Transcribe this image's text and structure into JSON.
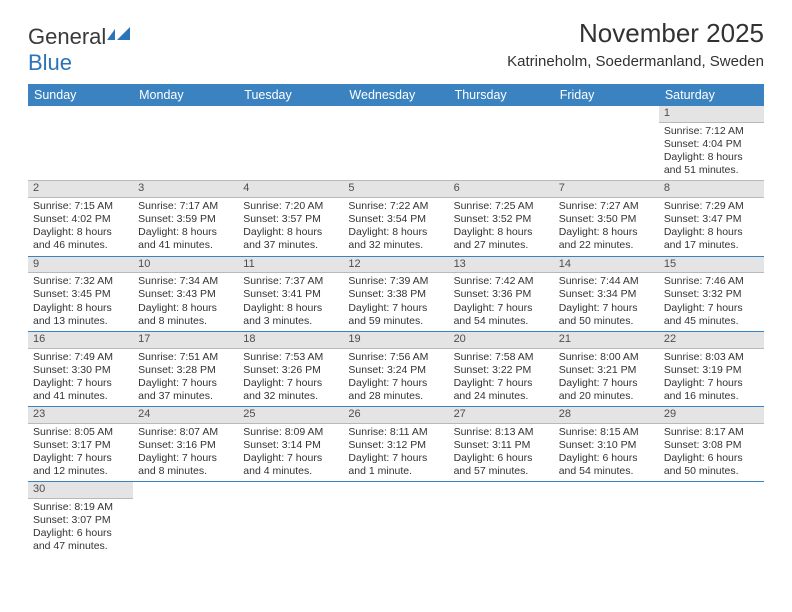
{
  "logo": {
    "word1": "General",
    "word2": "Blue"
  },
  "header": {
    "title": "November 2025",
    "location": "Katrineholm, Soedermanland, Sweden"
  },
  "colors": {
    "header_bg": "#3b83c0",
    "header_fg": "#ffffff",
    "daynum_bg": "#e4e4e4",
    "row_divider": "#3b83c0"
  },
  "weekdays": [
    "Sunday",
    "Monday",
    "Tuesday",
    "Wednesday",
    "Thursday",
    "Friday",
    "Saturday"
  ],
  "weeks": [
    [
      null,
      null,
      null,
      null,
      null,
      null,
      {
        "n": "1",
        "sunrise": "Sunrise: 7:12 AM",
        "sunset": "Sunset: 4:04 PM",
        "day1": "Daylight: 8 hours",
        "day2": "and 51 minutes."
      }
    ],
    [
      {
        "n": "2",
        "sunrise": "Sunrise: 7:15 AM",
        "sunset": "Sunset: 4:02 PM",
        "day1": "Daylight: 8 hours",
        "day2": "and 46 minutes."
      },
      {
        "n": "3",
        "sunrise": "Sunrise: 7:17 AM",
        "sunset": "Sunset: 3:59 PM",
        "day1": "Daylight: 8 hours",
        "day2": "and 41 minutes."
      },
      {
        "n": "4",
        "sunrise": "Sunrise: 7:20 AM",
        "sunset": "Sunset: 3:57 PM",
        "day1": "Daylight: 8 hours",
        "day2": "and 37 minutes."
      },
      {
        "n": "5",
        "sunrise": "Sunrise: 7:22 AM",
        "sunset": "Sunset: 3:54 PM",
        "day1": "Daylight: 8 hours",
        "day2": "and 32 minutes."
      },
      {
        "n": "6",
        "sunrise": "Sunrise: 7:25 AM",
        "sunset": "Sunset: 3:52 PM",
        "day1": "Daylight: 8 hours",
        "day2": "and 27 minutes."
      },
      {
        "n": "7",
        "sunrise": "Sunrise: 7:27 AM",
        "sunset": "Sunset: 3:50 PM",
        "day1": "Daylight: 8 hours",
        "day2": "and 22 minutes."
      },
      {
        "n": "8",
        "sunrise": "Sunrise: 7:29 AM",
        "sunset": "Sunset: 3:47 PM",
        "day1": "Daylight: 8 hours",
        "day2": "and 17 minutes."
      }
    ],
    [
      {
        "n": "9",
        "sunrise": "Sunrise: 7:32 AM",
        "sunset": "Sunset: 3:45 PM",
        "day1": "Daylight: 8 hours",
        "day2": "and 13 minutes."
      },
      {
        "n": "10",
        "sunrise": "Sunrise: 7:34 AM",
        "sunset": "Sunset: 3:43 PM",
        "day1": "Daylight: 8 hours",
        "day2": "and 8 minutes."
      },
      {
        "n": "11",
        "sunrise": "Sunrise: 7:37 AM",
        "sunset": "Sunset: 3:41 PM",
        "day1": "Daylight: 8 hours",
        "day2": "and 3 minutes."
      },
      {
        "n": "12",
        "sunrise": "Sunrise: 7:39 AM",
        "sunset": "Sunset: 3:38 PM",
        "day1": "Daylight: 7 hours",
        "day2": "and 59 minutes."
      },
      {
        "n": "13",
        "sunrise": "Sunrise: 7:42 AM",
        "sunset": "Sunset: 3:36 PM",
        "day1": "Daylight: 7 hours",
        "day2": "and 54 minutes."
      },
      {
        "n": "14",
        "sunrise": "Sunrise: 7:44 AM",
        "sunset": "Sunset: 3:34 PM",
        "day1": "Daylight: 7 hours",
        "day2": "and 50 minutes."
      },
      {
        "n": "15",
        "sunrise": "Sunrise: 7:46 AM",
        "sunset": "Sunset: 3:32 PM",
        "day1": "Daylight: 7 hours",
        "day2": "and 45 minutes."
      }
    ],
    [
      {
        "n": "16",
        "sunrise": "Sunrise: 7:49 AM",
        "sunset": "Sunset: 3:30 PM",
        "day1": "Daylight: 7 hours",
        "day2": "and 41 minutes."
      },
      {
        "n": "17",
        "sunrise": "Sunrise: 7:51 AM",
        "sunset": "Sunset: 3:28 PM",
        "day1": "Daylight: 7 hours",
        "day2": "and 37 minutes."
      },
      {
        "n": "18",
        "sunrise": "Sunrise: 7:53 AM",
        "sunset": "Sunset: 3:26 PM",
        "day1": "Daylight: 7 hours",
        "day2": "and 32 minutes."
      },
      {
        "n": "19",
        "sunrise": "Sunrise: 7:56 AM",
        "sunset": "Sunset: 3:24 PM",
        "day1": "Daylight: 7 hours",
        "day2": "and 28 minutes."
      },
      {
        "n": "20",
        "sunrise": "Sunrise: 7:58 AM",
        "sunset": "Sunset: 3:22 PM",
        "day1": "Daylight: 7 hours",
        "day2": "and 24 minutes."
      },
      {
        "n": "21",
        "sunrise": "Sunrise: 8:00 AM",
        "sunset": "Sunset: 3:21 PM",
        "day1": "Daylight: 7 hours",
        "day2": "and 20 minutes."
      },
      {
        "n": "22",
        "sunrise": "Sunrise: 8:03 AM",
        "sunset": "Sunset: 3:19 PM",
        "day1": "Daylight: 7 hours",
        "day2": "and 16 minutes."
      }
    ],
    [
      {
        "n": "23",
        "sunrise": "Sunrise: 8:05 AM",
        "sunset": "Sunset: 3:17 PM",
        "day1": "Daylight: 7 hours",
        "day2": "and 12 minutes."
      },
      {
        "n": "24",
        "sunrise": "Sunrise: 8:07 AM",
        "sunset": "Sunset: 3:16 PM",
        "day1": "Daylight: 7 hours",
        "day2": "and 8 minutes."
      },
      {
        "n": "25",
        "sunrise": "Sunrise: 8:09 AM",
        "sunset": "Sunset: 3:14 PM",
        "day1": "Daylight: 7 hours",
        "day2": "and 4 minutes."
      },
      {
        "n": "26",
        "sunrise": "Sunrise: 8:11 AM",
        "sunset": "Sunset: 3:12 PM",
        "day1": "Daylight: 7 hours",
        "day2": "and 1 minute."
      },
      {
        "n": "27",
        "sunrise": "Sunrise: 8:13 AM",
        "sunset": "Sunset: 3:11 PM",
        "day1": "Daylight: 6 hours",
        "day2": "and 57 minutes."
      },
      {
        "n": "28",
        "sunrise": "Sunrise: 8:15 AM",
        "sunset": "Sunset: 3:10 PM",
        "day1": "Daylight: 6 hours",
        "day2": "and 54 minutes."
      },
      {
        "n": "29",
        "sunrise": "Sunrise: 8:17 AM",
        "sunset": "Sunset: 3:08 PM",
        "day1": "Daylight: 6 hours",
        "day2": "and 50 minutes."
      }
    ],
    [
      {
        "n": "30",
        "sunrise": "Sunrise: 8:19 AM",
        "sunset": "Sunset: 3:07 PM",
        "day1": "Daylight: 6 hours",
        "day2": "and 47 minutes."
      },
      null,
      null,
      null,
      null,
      null,
      null
    ]
  ]
}
